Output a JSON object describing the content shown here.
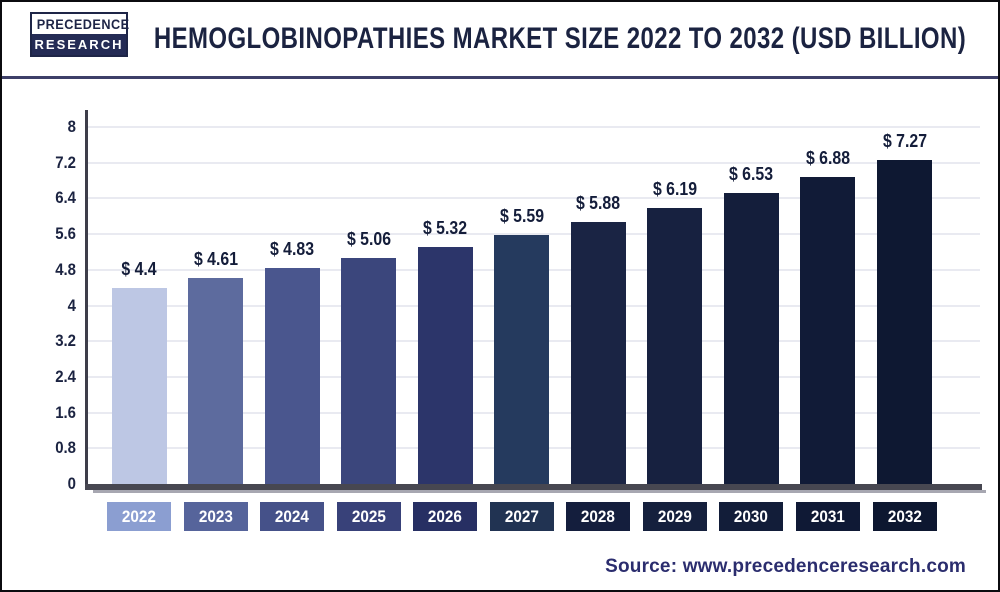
{
  "logo": {
    "line1": "PRECEDENCE",
    "line2": "RESEARCH"
  },
  "header": {
    "title": "HEMOGLOBINOPATHIES MARKET SIZE 2022 TO 2032 (USD BILLION)"
  },
  "source": {
    "label": "Source: www.precedenceresearch.com"
  },
  "chart_data": {
    "type": "bar",
    "title": "Hemoglobinopathies Market Size 2022 to 2032 (USD Billion)",
    "categories": [
      "2022",
      "2023",
      "2024",
      "2025",
      "2026",
      "2027",
      "2028",
      "2029",
      "2030",
      "2031",
      "2032"
    ],
    "values": [
      4.4,
      4.61,
      4.83,
      5.06,
      5.32,
      5.59,
      5.88,
      6.19,
      6.53,
      6.88,
      7.27
    ],
    "value_labels": [
      "$ 4.4",
      "$ 4.61",
      "$ 4.83",
      "$ 5.06",
      "$ 5.32",
      "$ 5.59",
      "$ 5.88",
      "$ 6.19",
      "$ 6.53",
      "$ 6.88",
      "$ 7.27"
    ],
    "bar_colors": [
      "#bdc7e4",
      "#5d6b9e",
      "#4a568e",
      "#3b467c",
      "#2c356a",
      "#253a5e",
      "#1a2444",
      "#172140",
      "#141e3b",
      "#111b37",
      "#0e1832"
    ],
    "chip_colors": [
      "#8b9ed1",
      "#56649b",
      "#455189",
      "#384179",
      "#272f63",
      "#213352",
      "#141e3d",
      "#15203d",
      "#121d39",
      "#0f1935",
      "#0d1730"
    ],
    "unit_prefix": "$",
    "xlabel": "",
    "ylabel": "",
    "ylim": [
      0,
      8
    ],
    "yticks": [
      0,
      0.8,
      1.6,
      2.4,
      3.2,
      4,
      4.8,
      5.6,
      6.4,
      7.2,
      8
    ],
    "ytick_labels": [
      "0",
      "0.8",
      "1.6",
      "2.4",
      "3.2",
      "4",
      "4.8",
      "5.6",
      "6.4",
      "7.2",
      "8"
    ],
    "grid": "horizontal",
    "legend": "none",
    "colors": {
      "axis": "#3e3e4a",
      "baseline": "#474751",
      "gridline": "#e9eaf1",
      "label_text": "#141d3a",
      "title_text": "#1b2341",
      "source_text": "#2b2d6e",
      "separator": "#3d3f68"
    }
  }
}
